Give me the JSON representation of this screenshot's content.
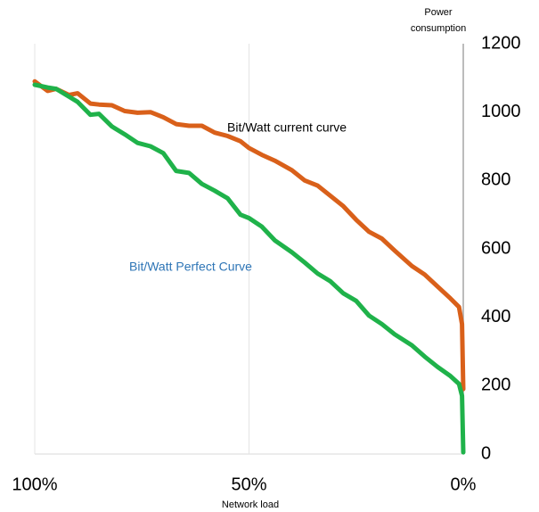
{
  "chart_data": {
    "type": "line",
    "x_label": "Network load",
    "y_label": "Power consumption",
    "x": [
      100,
      97,
      95,
      92,
      90,
      87,
      85,
      82,
      79,
      76,
      73,
      70,
      67,
      64,
      61,
      58,
      55,
      52,
      50,
      47,
      44,
      40,
      37,
      34,
      31,
      28,
      25,
      22,
      19,
      16,
      12,
      9,
      6,
      3,
      1,
      0.3,
      0
    ],
    "series": [
      {
        "name": "Bit/Watt current curve",
        "color": "#d9601a",
        "values": [
          1090,
          1062,
          1068,
          1050,
          1055,
          1025,
          1022,
          1020,
          1003,
          998,
          1000,
          985,
          965,
          960,
          960,
          940,
          930,
          915,
          895,
          875,
          858,
          830,
          800,
          785,
          755,
          725,
          685,
          650,
          630,
          595,
          550,
          525,
          490,
          455,
          430,
          380,
          190
        ]
      },
      {
        "name": "Bit/Watt Perfect Curve",
        "color": "#1fb24a",
        "values": [
          1080,
          1072,
          1068,
          1045,
          1030,
          992,
          995,
          958,
          935,
          910,
          900,
          880,
          828,
          822,
          790,
          770,
          748,
          700,
          690,
          665,
          625,
          590,
          560,
          528,
          505,
          470,
          448,
          405,
          380,
          350,
          318,
          285,
          255,
          228,
          205,
          170,
          5
        ]
      }
    ],
    "xlim": [
      100,
      0
    ],
    "xticks": [
      {
        "value": 100,
        "label": "100%"
      },
      {
        "value": 50,
        "label": "50%"
      },
      {
        "value": 0,
        "label": "0%"
      }
    ],
    "ylim": [
      0,
      1200
    ],
    "yticks": [
      0,
      200,
      400,
      600,
      800,
      1000,
      1200
    ],
    "y_axis_side": "right",
    "grid": true
  }
}
